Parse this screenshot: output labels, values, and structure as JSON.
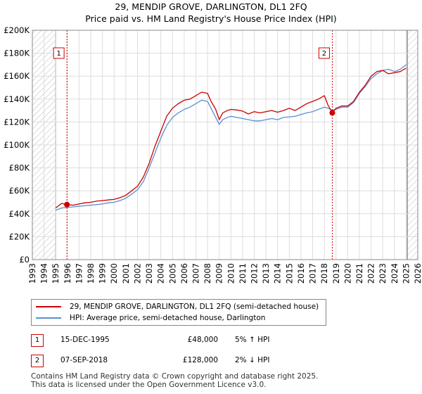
{
  "title_line1": "29, MENDIP GROVE, DARLINGTON, DL1 2FQ",
  "title_line2": "Price paid vs. HM Land Registry's House Price Index (HPI)",
  "chart_data": {
    "type": "line",
    "title": "29, MENDIP GROVE, DARLINGTON, DL1 2FQ — Price paid vs. HM Land Registry's House Price Index (HPI)",
    "xlim": [
      1993,
      2026
    ],
    "ylim": [
      0,
      200000
    ],
    "x_ticks": [
      1993,
      1994,
      1995,
      1996,
      1997,
      1998,
      1999,
      2000,
      2001,
      2002,
      2003,
      2004,
      2005,
      2006,
      2007,
      2008,
      2009,
      2010,
      2011,
      2012,
      2013,
      2014,
      2015,
      2016,
      2017,
      2018,
      2019,
      2020,
      2021,
      2022,
      2023,
      2024,
      2025,
      2026
    ],
    "y_ticks": [
      0,
      20000,
      40000,
      60000,
      80000,
      100000,
      120000,
      140000,
      160000,
      180000,
      200000
    ],
    "y_tick_labels": [
      "£0",
      "£20K",
      "£40K",
      "£60K",
      "£80K",
      "£100K",
      "£120K",
      "£140K",
      "£160K",
      "£180K",
      "£200K"
    ],
    "grid": true,
    "hatched_ranges": [
      [
        1993,
        1995.0
      ],
      [
        2025.1,
        2026
      ]
    ],
    "series": [
      {
        "name": "29, MENDIP GROVE, DARLINGTON, DL1 2FQ (semi-detached house)",
        "color": "#cc0000",
        "x": [
          1995.0,
          1995.5,
          1995.96,
          1996.5,
          1997,
          1997.5,
          1998,
          1998.5,
          1999,
          1999.5,
          2000,
          2000.5,
          2001,
          2001.5,
          2002,
          2002.5,
          2003,
          2003.5,
          2004,
          2004.5,
          2005,
          2005.5,
          2006,
          2006.5,
          2007,
          2007.5,
          2008,
          2008.3,
          2008.7,
          2009,
          2009.3,
          2009.7,
          2010,
          2010.5,
          2011,
          2011.5,
          2012,
          2012.5,
          2013,
          2013.5,
          2014,
          2014.5,
          2015,
          2015.5,
          2016,
          2016.5,
          2017,
          2017.5,
          2018,
          2018.3,
          2018.68,
          2019,
          2019.5,
          2020,
          2020.5,
          2021,
          2021.5,
          2022,
          2022.5,
          2023,
          2023.5,
          2024,
          2024.5,
          2025.0
        ],
        "y": [
          45000,
          49000,
          48000,
          47500,
          48500,
          49500,
          50000,
          51000,
          51500,
          52000,
          52500,
          54000,
          56000,
          60000,
          64000,
          72000,
          84000,
          99000,
          112000,
          125000,
          132000,
          136000,
          139000,
          140000,
          143000,
          146000,
          145000,
          138000,
          131000,
          122000,
          128000,
          130000,
          131000,
          130500,
          129500,
          127000,
          129000,
          128000,
          129000,
          130000,
          128500,
          130000,
          132000,
          130000,
          133000,
          136000,
          138000,
          140000,
          143000,
          135000,
          128000,
          132000,
          134000,
          134000,
          138000,
          146000,
          152000,
          160000,
          164000,
          165000,
          162000,
          163000,
          164000,
          167000
        ]
      },
      {
        "name": "HPI: Average price, semi-detached house, Darlington",
        "color": "#5b8fd0",
        "x": [
          1995.0,
          1995.5,
          1996,
          1996.5,
          1997,
          1997.5,
          1998,
          1998.5,
          1999,
          1999.5,
          2000,
          2000.5,
          2001,
          2001.5,
          2002,
          2002.5,
          2003,
          2003.5,
          2004,
          2004.5,
          2005,
          2005.5,
          2006,
          2006.5,
          2007,
          2007.5,
          2008,
          2008.3,
          2008.7,
          2009,
          2009.3,
          2009.7,
          2010,
          2010.5,
          2011,
          2011.5,
          2012,
          2012.5,
          2013,
          2013.5,
          2014,
          2014.5,
          2015,
          2015.5,
          2016,
          2016.5,
          2017,
          2017.5,
          2018,
          2018.3,
          2018.68,
          2019,
          2019.5,
          2020,
          2020.5,
          2021,
          2021.5,
          2022,
          2022.5,
          2023,
          2023.5,
          2024,
          2024.5,
          2025.0
        ],
        "y": [
          43000,
          45000,
          45500,
          46000,
          46500,
          47000,
          47500,
          48000,
          48500,
          49500,
          50000,
          51500,
          53500,
          57000,
          61000,
          68000,
          80000,
          93000,
          106000,
          117000,
          124000,
          128000,
          131000,
          133000,
          136000,
          139000,
          138000,
          132000,
          124000,
          118000,
          122000,
          124000,
          125000,
          124000,
          123000,
          122000,
          121000,
          121000,
          122000,
          123000,
          122000,
          124000,
          124500,
          125000,
          126500,
          128000,
          129000,
          131000,
          133000,
          132000,
          130500,
          131000,
          133000,
          133000,
          137000,
          145000,
          151000,
          158000,
          162000,
          165000,
          166000,
          164000,
          166000,
          170000
        ]
      }
    ],
    "annotations": [
      {
        "label": "1",
        "x": 1995.96,
        "y": 48000
      },
      {
        "label": "2",
        "x": 2018.68,
        "y": 128000
      }
    ]
  },
  "legend": {
    "property_label": "29, MENDIP GROVE, DARLINGTON, DL1 2FQ (semi-detached house)",
    "hpi_label": "HPI: Average price, semi-detached house, Darlington"
  },
  "transactions": [
    {
      "num": "1",
      "date": "15-DEC-1995",
      "price": "£48,000",
      "hpi": "5% ↑ HPI"
    },
    {
      "num": "2",
      "date": "07-SEP-2018",
      "price": "£128,000",
      "hpi": "2% ↓ HPI"
    }
  ],
  "footer": {
    "line1": "Contains HM Land Registry data © Crown copyright and database right 2025.",
    "line2": "This data is licensed under the Open Government Licence v3.0."
  },
  "colors": {
    "property": "#cc0000",
    "hpi": "#5b8fd0",
    "marker_line": "#cc0000"
  }
}
